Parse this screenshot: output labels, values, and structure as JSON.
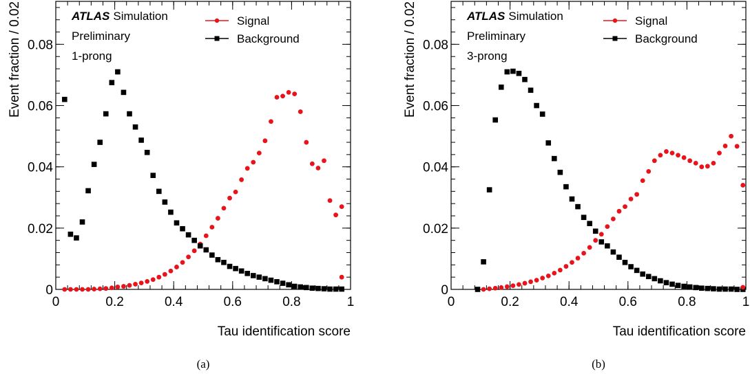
{
  "colors": {
    "signal": "#e8141b",
    "background": "#000000"
  },
  "chart_data": [
    {
      "type": "scatter",
      "caption": "(a)",
      "xlabel": "Tau identification score",
      "ylabel": "Event fraction / 0.02",
      "xlim": [
        0,
        1
      ],
      "ylim": [
        0,
        0.094
      ],
      "x_ticks": [
        "0",
        "0.2",
        "0.4",
        "0.6",
        "0.8",
        "1"
      ],
      "y_ticks": [
        "0",
        "0.02",
        "0.04",
        "0.06",
        "0.08"
      ],
      "label_atlas": "ATLAS",
      "label_atlas_suffix": "Simulation",
      "label_status": "Preliminary",
      "label_prong": "1-prong",
      "legend_position": "top-right",
      "series": [
        {
          "name": "Signal",
          "marker": "circle",
          "x": [
            0.03,
            0.05,
            0.07,
            0.09,
            0.11,
            0.13,
            0.15,
            0.17,
            0.19,
            0.21,
            0.23,
            0.25,
            0.27,
            0.29,
            0.31,
            0.33,
            0.35,
            0.37,
            0.39,
            0.41,
            0.43,
            0.45,
            0.47,
            0.49,
            0.51,
            0.53,
            0.55,
            0.57,
            0.59,
            0.61,
            0.63,
            0.65,
            0.67,
            0.69,
            0.71,
            0.73,
            0.75,
            0.77,
            0.79,
            0.81,
            0.83,
            0.85,
            0.87,
            0.89,
            0.91,
            0.93,
            0.95,
            0.97
          ],
          "y": [
            0.0,
            0.0,
            0.0,
            0.0,
            0.0,
            0.0001,
            0.0002,
            0.0003,
            0.0005,
            0.0008,
            0.001,
            0.0013,
            0.0017,
            0.0021,
            0.0026,
            0.0032,
            0.004,
            0.0049,
            0.006,
            0.0073,
            0.0088,
            0.0106,
            0.0126,
            0.0148,
            0.0175,
            0.0203,
            0.0232,
            0.0265,
            0.0298,
            0.0318,
            0.0358,
            0.0395,
            0.0415,
            0.0445,
            0.0485,
            0.0548,
            0.0627,
            0.0631,
            0.0643,
            0.0638,
            0.058,
            0.048,
            0.041,
            0.0396,
            0.042,
            0.029,
            0.0243,
            0.027
          ]
        },
        {
          "name": "Background",
          "marker": "square",
          "x": [
            0.03,
            0.05,
            0.07,
            0.09,
            0.11,
            0.13,
            0.15,
            0.17,
            0.19,
            0.21,
            0.23,
            0.25,
            0.27,
            0.29,
            0.31,
            0.33,
            0.35,
            0.37,
            0.39,
            0.41,
            0.43,
            0.45,
            0.47,
            0.49,
            0.51,
            0.53,
            0.55,
            0.57,
            0.59,
            0.61,
            0.63,
            0.65,
            0.67,
            0.69,
            0.71,
            0.73,
            0.75,
            0.77,
            0.79,
            0.81,
            0.83,
            0.85,
            0.87,
            0.89,
            0.91,
            0.93,
            0.95,
            0.97
          ],
          "y": [
            0.062,
            0.018,
            0.0168,
            0.022,
            0.0322,
            0.0408,
            0.048,
            0.0573,
            0.0675,
            0.071,
            0.0643,
            0.0573,
            0.053,
            0.0487,
            0.0447,
            0.0372,
            0.032,
            0.0285,
            0.0252,
            0.0217,
            0.0198,
            0.0178,
            0.016,
            0.0142,
            0.0129,
            0.0112,
            0.0097,
            0.0088,
            0.0075,
            0.0068,
            0.006,
            0.0052,
            0.0045,
            0.004,
            0.0035,
            0.003,
            0.0025,
            0.002,
            0.0015,
            0.001,
            0.0008,
            0.0006,
            0.0004,
            0.0003,
            0.0002,
            0.0001,
            0.0001,
            0.0001
          ]
        }
      ],
      "extra_signal_point": {
        "x": 0.97,
        "y": 0.004
      }
    },
    {
      "type": "scatter",
      "caption": "(b)",
      "xlabel": "Tau identification score",
      "ylabel": "Event fraction / 0.02",
      "xlim": [
        0,
        1
      ],
      "ylim": [
        0,
        0.094
      ],
      "x_ticks": [
        "0",
        "0.2",
        "0.4",
        "0.6",
        "0.8",
        "1"
      ],
      "y_ticks": [
        "0",
        "0.02",
        "0.04",
        "0.06",
        "0.08"
      ],
      "label_atlas": "ATLAS",
      "label_atlas_suffix": "Simulation",
      "label_status": "Preliminary",
      "label_prong": "3-prong",
      "legend_position": "top-right",
      "series": [
        {
          "name": "Signal",
          "marker": "circle",
          "x": [
            0.09,
            0.11,
            0.13,
            0.15,
            0.17,
            0.19,
            0.21,
            0.23,
            0.25,
            0.27,
            0.29,
            0.31,
            0.33,
            0.35,
            0.37,
            0.39,
            0.41,
            0.43,
            0.45,
            0.47,
            0.49,
            0.51,
            0.53,
            0.55,
            0.57,
            0.59,
            0.61,
            0.63,
            0.65,
            0.67,
            0.69,
            0.71,
            0.73,
            0.75,
            0.77,
            0.79,
            0.81,
            0.83,
            0.85,
            0.87,
            0.89,
            0.91,
            0.93,
            0.95,
            0.97,
            0.99
          ],
          "y": [
            0.0,
            0.0,
            0.0002,
            0.0004,
            0.0006,
            0.0009,
            0.0012,
            0.0016,
            0.002,
            0.0025,
            0.003,
            0.0037,
            0.0044,
            0.0053,
            0.0063,
            0.0075,
            0.0088,
            0.0102,
            0.0118,
            0.0137,
            0.016,
            0.018,
            0.0205,
            0.023,
            0.0255,
            0.027,
            0.0295,
            0.031,
            0.0355,
            0.0385,
            0.042,
            0.0438,
            0.045,
            0.0445,
            0.0438,
            0.043,
            0.042,
            0.0412,
            0.04,
            0.0402,
            0.0412,
            0.0445,
            0.0468,
            0.05,
            0.0467,
            0.034
          ]
        },
        {
          "name": "Background",
          "marker": "square",
          "x": [
            0.09,
            0.11,
            0.13,
            0.15,
            0.17,
            0.19,
            0.21,
            0.23,
            0.25,
            0.27,
            0.29,
            0.31,
            0.33,
            0.35,
            0.37,
            0.39,
            0.41,
            0.43,
            0.45,
            0.47,
            0.49,
            0.51,
            0.53,
            0.55,
            0.57,
            0.59,
            0.61,
            0.63,
            0.65,
            0.67,
            0.69,
            0.71,
            0.73,
            0.75,
            0.77,
            0.79,
            0.81,
            0.83,
            0.85,
            0.87,
            0.89,
            0.91,
            0.93,
            0.95,
            0.97,
            0.99
          ],
          "y": [
            0.0,
            0.009,
            0.0325,
            0.0553,
            0.066,
            0.071,
            0.0712,
            0.0705,
            0.0685,
            0.065,
            0.06,
            0.0572,
            0.0478,
            0.0427,
            0.0382,
            0.0335,
            0.0295,
            0.027,
            0.0235,
            0.0215,
            0.019,
            0.0155,
            0.0142,
            0.0122,
            0.0105,
            0.0088,
            0.0074,
            0.0062,
            0.005,
            0.0042,
            0.0035,
            0.0028,
            0.0022,
            0.0017,
            0.0013,
            0.001,
            0.0008,
            0.0006,
            0.0004,
            0.0003,
            0.0002,
            0.0001,
            0.0001,
            0.0001,
            0.0,
            0.0
          ]
        }
      ],
      "extra_signal_point": {
        "x": 0.99,
        "y": 0.0007
      }
    }
  ]
}
